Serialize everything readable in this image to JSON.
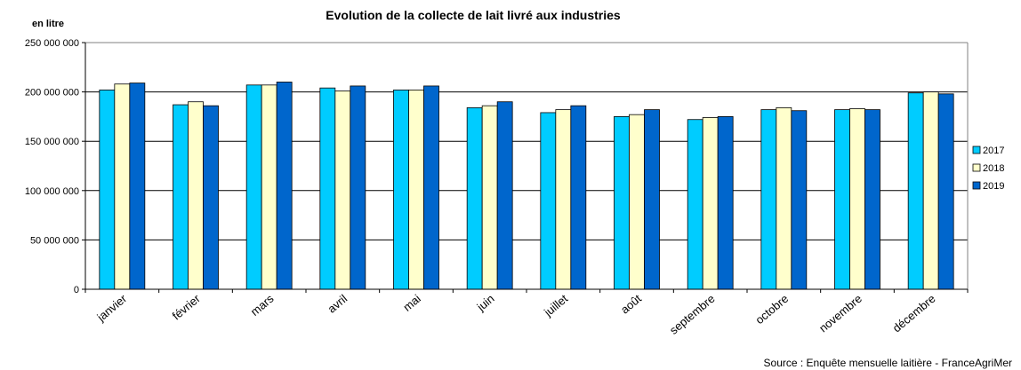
{
  "chart_data": {
    "type": "bar",
    "title": "Evolution de la collecte de lait livré aux industries",
    "ylabel": "en litre",
    "xlabel": "",
    "source": "Source : Enquête mensuelle laitière - FranceAgriMer",
    "categories": [
      "janvier",
      "février",
      "mars",
      "avril",
      "mai",
      "juin",
      "juillet",
      "août",
      "septembre",
      "octobre",
      "novembre",
      "décembre"
    ],
    "ylim": [
      0,
      250000000
    ],
    "yticks": [
      0,
      50000000,
      100000000,
      150000000,
      200000000,
      250000000
    ],
    "ytick_labels": [
      "0",
      "50 000 000",
      "100 000 000",
      "150 000 000",
      "200 000 000",
      "250 000 000"
    ],
    "grid": true,
    "legend_position": "right",
    "series": [
      {
        "name": "2017",
        "color": "#00CCFF",
        "values": [
          202000000,
          187000000,
          207000000,
          204000000,
          202000000,
          184000000,
          179000000,
          175000000,
          172000000,
          182000000,
          182000000,
          199000000
        ]
      },
      {
        "name": "2018",
        "color": "#FFFFCC",
        "values": [
          208000000,
          190000000,
          207000000,
          201000000,
          202000000,
          186000000,
          182000000,
          177000000,
          174000000,
          184000000,
          183000000,
          200000000
        ]
      },
      {
        "name": "2019",
        "color": "#0066CC",
        "values": [
          209000000,
          186000000,
          210000000,
          206000000,
          206000000,
          190000000,
          186000000,
          182000000,
          175000000,
          181000000,
          182000000,
          198000000
        ]
      }
    ]
  }
}
